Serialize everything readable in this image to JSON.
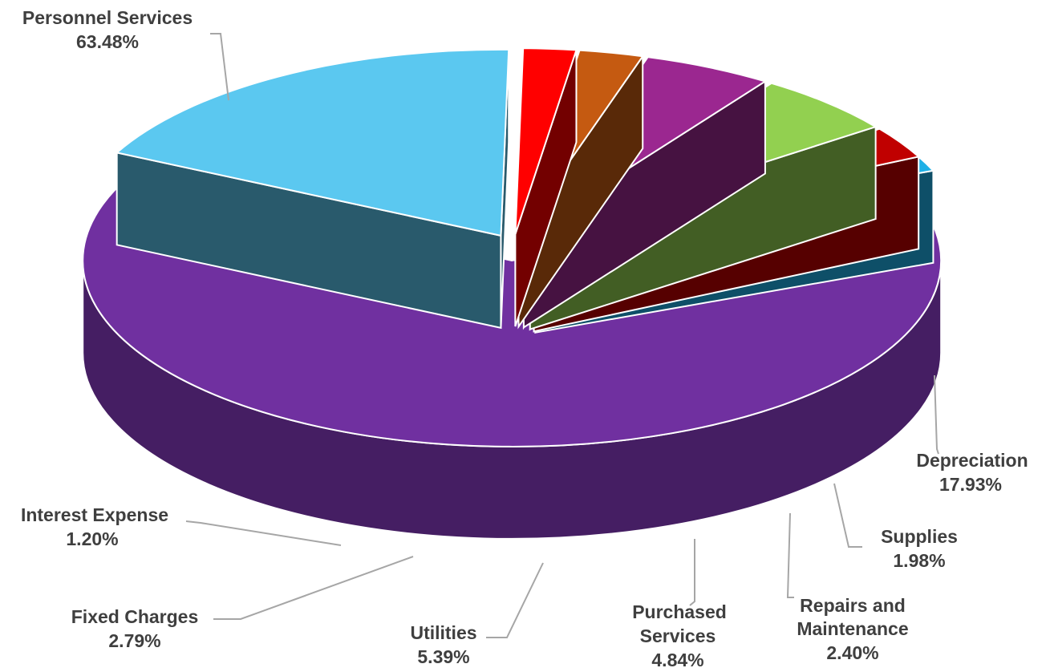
{
  "chart_data": {
    "type": "pie",
    "style": "3d-exploded",
    "title": "",
    "slices": [
      {
        "name": "Personnel Services",
        "name_lines": [
          "Personnel Services"
        ],
        "value": 63.48,
        "label": "63.48%",
        "color": "#7030a0"
      },
      {
        "name": "Depreciation",
        "name_lines": [
          "Depreciation"
        ],
        "value": 17.93,
        "label": "17.93%",
        "color": "#5bc8f0"
      },
      {
        "name": "Supplies",
        "name_lines": [
          "Supplies"
        ],
        "value": 1.98,
        "label": "1.98%",
        "color": "#ff0000"
      },
      {
        "name": "Repairs and Maintenance",
        "name_lines": [
          "Repairs and",
          "Maintenance"
        ],
        "value": 2.4,
        "label": "2.40%",
        "color": "#c55a11"
      },
      {
        "name": "Purchased Services",
        "name_lines": [
          "Purchased",
          "Services"
        ],
        "value": 4.84,
        "label": "4.84%",
        "color": "#9b2790"
      },
      {
        "name": "Utilities",
        "name_lines": [
          "Utilities"
        ],
        "value": 5.39,
        "label": "5.39%",
        "color": "#92d050"
      },
      {
        "name": "Fixed Charges",
        "name_lines": [
          "Fixed Charges"
        ],
        "value": 2.79,
        "label": "2.79%",
        "color": "#c00000"
      },
      {
        "name": "Interest Expense",
        "name_lines": [
          "Interest Expense"
        ],
        "value": 1.2,
        "label": "1.20%",
        "color": "#1eb0e6"
      }
    ]
  }
}
